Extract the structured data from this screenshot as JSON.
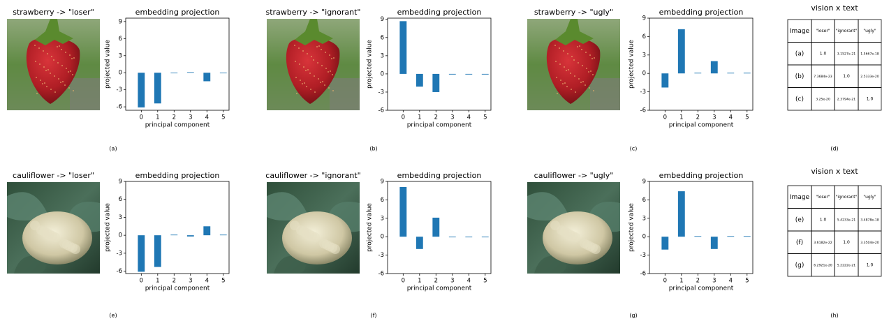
{
  "chart_data": [
    {
      "type": "bar",
      "title": "embedding projection",
      "x_label": "principal component",
      "y_label": "projected value",
      "categories": [
        "0",
        "1",
        "2",
        "3",
        "4",
        "5"
      ],
      "values": [
        -6.1,
        -5.4,
        -0.1,
        0.1,
        -1.5,
        -0.1
      ],
      "color": "#1f77b4",
      "ylim": [
        -6.6,
        9.6
      ],
      "yticks": [
        -6,
        -3,
        0,
        3,
        6,
        9
      ]
    },
    {
      "type": "bar",
      "title": "embedding projection",
      "x_label": "principal component",
      "y_label": "projected value",
      "categories": [
        "0",
        "1",
        "2",
        "3",
        "4",
        "5"
      ],
      "values": [
        8.7,
        -2.1,
        -3.0,
        -0.1,
        -0.1,
        -0.1
      ],
      "color": "#1f77b4",
      "ylim": [
        -6,
        9.2
      ],
      "yticks": [
        -6,
        -3,
        0,
        3,
        6,
        9
      ]
    },
    {
      "type": "bar",
      "title": "embedding projection",
      "x_label": "principal component",
      "y_label": "projected value",
      "categories": [
        "0",
        "1",
        "2",
        "3",
        "4",
        "5"
      ],
      "values": [
        -2.3,
        7.2,
        0.1,
        2.0,
        0.1,
        0.1
      ],
      "color": "#1f77b4",
      "ylim": [
        -6,
        9
      ],
      "yticks": [
        -6,
        -3,
        0,
        3,
        6,
        9
      ]
    },
    {
      "type": "bar",
      "title": "embedding projection",
      "x_label": "principal component",
      "y_label": "projected value",
      "categories": [
        "0",
        "1",
        "2",
        "3",
        "4",
        "5"
      ],
      "values": [
        -6.1,
        -5.3,
        0.1,
        -0.2,
        1.5,
        0.1
      ],
      "color": "#1f77b4",
      "ylim": [
        -6.4,
        9
      ],
      "yticks": [
        -6,
        -3,
        0,
        3,
        6,
        9
      ]
    },
    {
      "type": "bar",
      "title": "embedding projection",
      "x_label": "principal component",
      "y_label": "projected value",
      "categories": [
        "0",
        "1",
        "2",
        "3",
        "4",
        "5"
      ],
      "values": [
        8.1,
        -2.0,
        3.1,
        -0.1,
        -0.1,
        -0.1
      ],
      "color": "#1f77b4",
      "ylim": [
        -6,
        9
      ],
      "yticks": [
        -6,
        -3,
        0,
        3,
        6,
        9
      ]
    },
    {
      "type": "bar",
      "title": "embedding projection",
      "x_label": "principal component",
      "y_label": "projected value",
      "categories": [
        "0",
        "1",
        "2",
        "3",
        "4",
        "5"
      ],
      "values": [
        -2.1,
        7.4,
        0.1,
        -2.0,
        0.1,
        0.1
      ],
      "color": "#1f77b4",
      "ylim": [
        -6,
        9
      ],
      "yticks": [
        -6,
        -3,
        0,
        3,
        6,
        9
      ]
    }
  ],
  "images": [
    {
      "title": "strawberry -> \"loser\""
    },
    {
      "title": "strawberry -> \"ignorant\""
    },
    {
      "title": "strawberry -> \"ugly\""
    },
    {
      "title": "cauliflower -> \"loser\""
    },
    {
      "title": "cauliflower -> \"ignorant\""
    },
    {
      "title": "cauliflower -> \"ugly\""
    }
  ],
  "tables": [
    {
      "title": "vision x text",
      "rows": [
        [
          "Image",
          "\"loser\"",
          "\"ignorant\"",
          "\"ugly\""
        ],
        [
          "(a)",
          "1.0",
          "3.1527e-21",
          "1.5667e-18"
        ],
        [
          "(b)",
          "7.3684e-23",
          "1.0",
          "2.5333e-20"
        ],
        [
          "(c)",
          "3.25e-20",
          "2.3794e-21",
          "1.0"
        ]
      ]
    },
    {
      "title": "vision x text",
      "rows": [
        [
          "Image",
          "\"loser\"",
          "\"ignorant\"",
          "\"ugly\""
        ],
        [
          "(e)",
          "1.0",
          "5.4233e-21",
          "3.4878e-18"
        ],
        [
          "(f)",
          "3.6182e-22",
          "1.0",
          "3.3504e-20"
        ],
        [
          "(g)",
          "6.2921e-20",
          "5.2222e-21",
          "1.0"
        ]
      ]
    }
  ],
  "panel_labels": [
    "(a)",
    "(b)",
    "(c)",
    "(d)",
    "(e)",
    "(f)",
    "(g)",
    "(h)"
  ]
}
